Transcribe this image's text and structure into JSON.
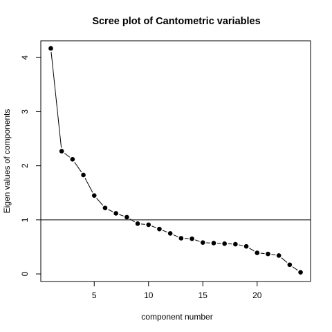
{
  "chart_data": {
    "type": "line",
    "title": "Scree plot of Cantometric variables",
    "xlabel": "component number",
    "ylabel": "Eigen values of components",
    "xlim": [
      0.08,
      24.92
    ],
    "ylim": [
      -0.14,
      4.31
    ],
    "xticks": [
      5,
      10,
      15,
      20
    ],
    "yticks": [
      0,
      1,
      2,
      3,
      4
    ],
    "x": [
      1,
      2,
      3,
      4,
      5,
      6,
      7,
      8,
      9,
      10,
      11,
      12,
      13,
      14,
      15,
      16,
      17,
      18,
      19,
      20,
      21,
      22,
      23,
      24
    ],
    "values": [
      4.17,
      2.27,
      2.12,
      1.83,
      1.45,
      1.22,
      1.12,
      1.05,
      0.93,
      0.91,
      0.83,
      0.75,
      0.66,
      0.65,
      0.58,
      0.57,
      0.56,
      0.55,
      0.51,
      0.39,
      0.37,
      0.34,
      0.17,
      0.03
    ],
    "reference_line_y": 1,
    "line_color": "#000000",
    "point_color": "#000000",
    "grid": false,
    "legend": "none"
  }
}
